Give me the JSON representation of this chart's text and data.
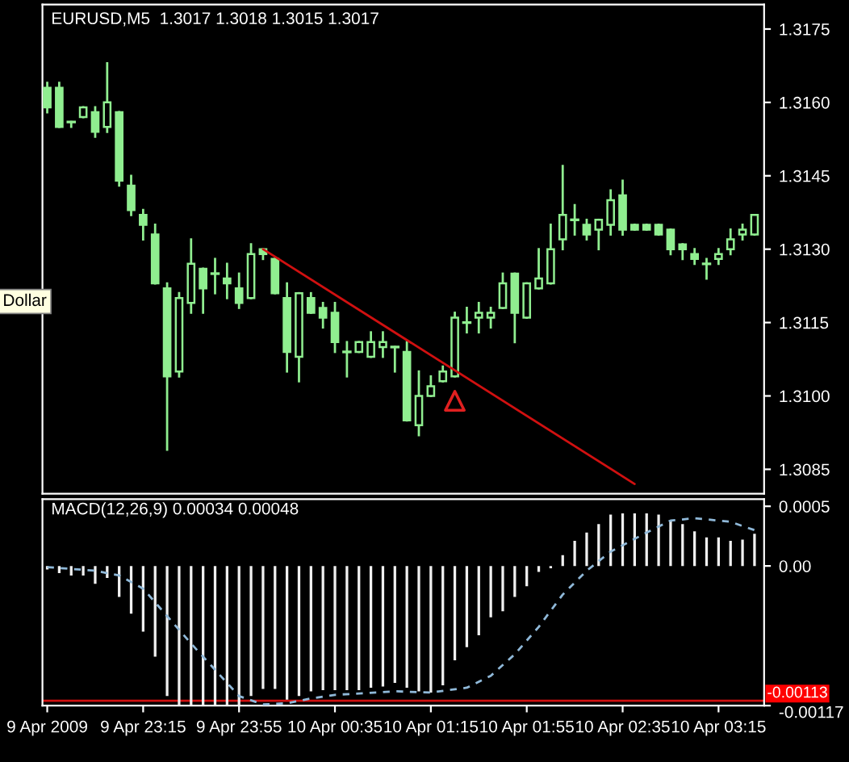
{
  "chart_data": [
    {
      "type": "candlestick",
      "title": "EURUSD,M5  1.3017 1.3018 1.3015 1.3017",
      "annotations": [
        "Dollar"
      ],
      "x": [
        "2009-04-09T22:35",
        "2009-04-09T22:40",
        "2009-04-09T22:45",
        "2009-04-09T22:50",
        "2009-04-09T22:55",
        "2009-04-09T23:00",
        "2009-04-09T23:05",
        "2009-04-09T23:10",
        "2009-04-09T23:15",
        "2009-04-09T23:20",
        "2009-04-09T23:25",
        "2009-04-09T23:30",
        "2009-04-09T23:35",
        "2009-04-09T23:40",
        "2009-04-09T23:45",
        "2009-04-09T23:50",
        "2009-04-09T23:55",
        "2009-04-10T00:00",
        "2009-04-10T00:05",
        "2009-04-10T00:10",
        "2009-04-10T00:15",
        "2009-04-10T00:20",
        "2009-04-10T00:25",
        "2009-04-10T00:30",
        "2009-04-10T00:35",
        "2009-04-10T00:40",
        "2009-04-10T00:45",
        "2009-04-10T00:50",
        "2009-04-10T00:55",
        "2009-04-10T01:00",
        "2009-04-10T01:05",
        "2009-04-10T01:10",
        "2009-04-10T01:15",
        "2009-04-10T01:20",
        "2009-04-10T01:25",
        "2009-04-10T01:30",
        "2009-04-10T01:35",
        "2009-04-10T01:40",
        "2009-04-10T01:45",
        "2009-04-10T01:50",
        "2009-04-10T01:55",
        "2009-04-10T02:00",
        "2009-04-10T02:05",
        "2009-04-10T02:10",
        "2009-04-10T02:15",
        "2009-04-10T02:20",
        "2009-04-10T02:25",
        "2009-04-10T02:30",
        "2009-04-10T02:35",
        "2009-04-10T02:40",
        "2009-04-10T02:45",
        "2009-04-10T02:50",
        "2009-04-10T02:55",
        "2009-04-10T03:00",
        "2009-04-10T03:05",
        "2009-04-10T03:10",
        "2009-04-10T03:15",
        "2009-04-10T03:20",
        "2009-04-10T03:25",
        "2009-04-10T03:30"
      ],
      "series": [
        {
          "color": "#90ee90",
          "ohlc": [
            [
              1.3163,
              1.3164,
              1.3158,
              1.3159
            ],
            [
              1.3163,
              1.3164,
              1.3155,
              1.3155
            ],
            [
              1.3156,
              1.3156,
              1.3155,
              1.3156
            ],
            [
              1.3157,
              1.3159,
              1.3157,
              1.3159
            ],
            [
              1.3158,
              1.3159,
              1.3153,
              1.3154
            ],
            [
              1.3155,
              1.3168,
              1.3154,
              1.316
            ],
            [
              1.3158,
              1.3158,
              1.3143,
              1.3144
            ],
            [
              1.3143,
              1.3145,
              1.3137,
              1.3138
            ],
            [
              1.3137,
              1.3138,
              1.3132,
              1.3135
            ],
            [
              1.3133,
              1.3135,
              1.3123,
              1.3123
            ],
            [
              1.3122,
              1.3123,
              1.3089,
              1.3104
            ],
            [
              1.3105,
              1.3121,
              1.3104,
              1.312
            ],
            [
              1.3119,
              1.3132,
              1.3117,
              1.3127
            ],
            [
              1.3126,
              1.3126,
              1.3117,
              1.3122
            ],
            [
              1.3125,
              1.3128,
              1.3121,
              1.3125
            ],
            [
              1.3124,
              1.3127,
              1.312,
              1.3123
            ],
            [
              1.3122,
              1.3125,
              1.3118,
              1.3119
            ],
            [
              1.312,
              1.3131,
              1.312,
              1.3129
            ],
            [
              1.313,
              1.313,
              1.3128,
              1.3129
            ],
            [
              1.3128,
              1.3128,
              1.3121,
              1.3121
            ],
            [
              1.312,
              1.3123,
              1.3105,
              1.3109
            ],
            [
              1.3108,
              1.3121,
              1.3103,
              1.3121
            ],
            [
              1.312,
              1.3121,
              1.3117,
              1.3117
            ],
            [
              1.3118,
              1.3119,
              1.3114,
              1.3116
            ],
            [
              1.3117,
              1.3119,
              1.3109,
              1.3111
            ],
            [
              1.3109,
              1.3111,
              1.3104,
              1.3109
            ],
            [
              1.3109,
              1.3111,
              1.3109,
              1.3111
            ],
            [
              1.3108,
              1.3113,
              1.3108,
              1.3111
            ],
            [
              1.311,
              1.3113,
              1.3108,
              1.3111
            ],
            [
              1.311,
              1.311,
              1.3105,
              1.311
            ],
            [
              1.3109,
              1.3111,
              1.3095,
              1.3095
            ],
            [
              1.3094,
              1.3105,
              1.3092,
              1.31
            ],
            [
              1.31,
              1.3104,
              1.31,
              1.3102
            ],
            [
              1.3103,
              1.3106,
              1.3103,
              1.3105
            ],
            [
              1.3104,
              1.3117,
              1.3104,
              1.3116
            ],
            [
              1.3115,
              1.3118,
              1.3113,
              1.3115
            ],
            [
              1.3116,
              1.3119,
              1.3113,
              1.3117
            ],
            [
              1.3116,
              1.3118,
              1.3114,
              1.3117
            ],
            [
              1.3118,
              1.3125,
              1.3118,
              1.3123
            ],
            [
              1.3125,
              1.3125,
              1.3111,
              1.3117
            ],
            [
              1.3116,
              1.3123,
              1.3116,
              1.3123
            ],
            [
              1.3122,
              1.313,
              1.3122,
              1.3124
            ],
            [
              1.3123,
              1.3135,
              1.3123,
              1.313
            ],
            [
              1.3132,
              1.3147,
              1.313,
              1.3137
            ],
            [
              1.3136,
              1.3139,
              1.3133,
              1.3136
            ],
            [
              1.3135,
              1.3136,
              1.3132,
              1.3133
            ],
            [
              1.3134,
              1.3136,
              1.313,
              1.3136
            ],
            [
              1.3135,
              1.3142,
              1.3133,
              1.314
            ],
            [
              1.3141,
              1.3144,
              1.3133,
              1.3134
            ],
            [
              1.3135,
              1.3135,
              1.3134,
              1.3134
            ],
            [
              1.3135,
              1.3135,
              1.3134,
              1.3134
            ],
            [
              1.3135,
              1.3135,
              1.3133,
              1.3133
            ],
            [
              1.3134,
              1.3134,
              1.3129,
              1.313
            ],
            [
              1.3131,
              1.3131,
              1.3128,
              1.313
            ],
            [
              1.3129,
              1.313,
              1.3127,
              1.3128
            ],
            [
              1.3127,
              1.3128,
              1.3124,
              1.3127
            ],
            [
              1.3128,
              1.313,
              1.3127,
              1.3129
            ],
            [
              1.313,
              1.3134,
              1.3129,
              1.3132
            ],
            [
              1.3133,
              1.3135,
              1.3132,
              1.3134
            ],
            [
              1.3133,
              1.3137,
              1.3133,
              1.3137
            ]
          ]
        },
        {
          "type": "line",
          "color": "#d01010",
          "x": [
            "2009-04-10T00:05",
            "2009-04-10T02:40"
          ],
          "values": [
            1.313,
            1.3082
          ]
        },
        {
          "type": "scatter",
          "color": "#e02020",
          "marker": "triangle",
          "x": [
            "2009-04-10T01:25"
          ],
          "values": [
            1.3099
          ]
        }
      ],
      "xlim": [
        "2009-04-09T22:33",
        "2009-04-10T03:34"
      ],
      "ylim": [
        1.308,
        1.318
      ],
      "yticks": [
        {
          "value": 1.3085,
          "label": "1.3085"
        },
        {
          "value": 1.31,
          "label": "1.3100"
        },
        {
          "value": 1.3115,
          "label": "1.3115"
        },
        {
          "value": 1.313,
          "label": "1.3130"
        },
        {
          "value": 1.3145,
          "label": "1.3145"
        },
        {
          "value": 1.316,
          "label": "1.3160"
        },
        {
          "value": 1.3175,
          "label": "1.3175"
        }
      ],
      "tick_labels": "y"
    },
    {
      "type": "bar",
      "title": "MACD(12,26,9) 0.00034 0.00048",
      "x": [
        "2009-04-09T22:35",
        "2009-04-09T22:40",
        "2009-04-09T22:45",
        "2009-04-09T22:50",
        "2009-04-09T22:55",
        "2009-04-09T23:00",
        "2009-04-09T23:05",
        "2009-04-09T23:10",
        "2009-04-09T23:15",
        "2009-04-09T23:20",
        "2009-04-09T23:25",
        "2009-04-09T23:30",
        "2009-04-09T23:35",
        "2009-04-09T23:40",
        "2009-04-09T23:45",
        "2009-04-09T23:50",
        "2009-04-09T23:55",
        "2009-04-10T00:00",
        "2009-04-10T00:05",
        "2009-04-10T00:10",
        "2009-04-10T00:15",
        "2009-04-10T00:20",
        "2009-04-10T00:25",
        "2009-04-10T00:30",
        "2009-04-10T00:35",
        "2009-04-10T00:40",
        "2009-04-10T00:45",
        "2009-04-10T00:50",
        "2009-04-10T00:55",
        "2009-04-10T01:00",
        "2009-04-10T01:05",
        "2009-04-10T01:10",
        "2009-04-10T01:15",
        "2009-04-10T01:20",
        "2009-04-10T01:25",
        "2009-04-10T01:30",
        "2009-04-10T01:35",
        "2009-04-10T01:40",
        "2009-04-10T01:45",
        "2009-04-10T01:50",
        "2009-04-10T01:55",
        "2009-04-10T02:00",
        "2009-04-10T02:05",
        "2009-04-10T02:10",
        "2009-04-10T02:15",
        "2009-04-10T02:20",
        "2009-04-10T02:25",
        "2009-04-10T02:30",
        "2009-04-10T02:35",
        "2009-04-10T02:40",
        "2009-04-10T02:45",
        "2009-04-10T02:50",
        "2009-04-10T02:55",
        "2009-04-10T03:00",
        "2009-04-10T03:05",
        "2009-04-10T03:10",
        "2009-04-10T03:15",
        "2009-04-10T03:20",
        "2009-04-10T03:25",
        "2009-04-10T03:30"
      ],
      "series": [
        {
          "color": "#f0f0f0",
          "values": [
            -3e-05,
            -6e-05,
            -8e-05,
            -8e-05,
            -0.00015,
            -0.0001,
            -0.00026,
            -0.0004,
            -0.00055,
            -0.00076,
            -0.00109,
            -0.00117,
            -0.00117,
            -0.00117,
            -0.00117,
            -0.00117,
            -0.00117,
            -0.00109,
            -0.00103,
            -0.00103,
            -0.00112,
            -0.00109,
            -0.00105,
            -0.00104,
            -0.00104,
            -0.00104,
            -0.00104,
            -0.00102,
            -0.00101,
            -0.00098,
            -0.00102,
            -0.00105,
            -0.00106,
            -0.001,
            -0.00079,
            -0.00068,
            -0.00058,
            -0.00043,
            -0.00038,
            -0.00026,
            -0.00017,
            -5e-05,
            -2e-05,
            9e-05,
            0.00021,
            0.00028,
            0.00035,
            0.00043,
            0.00044,
            0.00044,
            0.00044,
            0.00043,
            0.00038,
            0.00035,
            0.00029,
            0.00024,
            0.00024,
            0.00021,
            0.00022,
            0.00027
          ]
        },
        {
          "type": "line",
          "color": "#8fb8d8",
          "line_style": "dashed",
          "x": [
            "2009-04-09T22:35",
            "2009-04-09T22:55",
            "2009-04-09T23:05",
            "2009-04-09T23:15",
            "2009-04-09T23:25",
            "2009-04-09T23:35",
            "2009-04-09T23:45",
            "2009-04-09T23:55",
            "2009-04-10T00:05",
            "2009-04-10T00:15",
            "2009-04-10T00:25",
            "2009-04-10T00:35",
            "2009-04-10T01:00",
            "2009-04-10T01:15",
            "2009-04-10T01:30",
            "2009-04-10T01:40",
            "2009-04-10T01:50",
            "2009-04-10T02:00",
            "2009-04-10T02:10",
            "2009-04-10T02:20",
            "2009-04-10T02:30",
            "2009-04-10T02:45",
            "2009-04-10T02:55",
            "2009-04-10T03:05",
            "2009-04-10T03:20",
            "2009-04-10T03:30"
          ],
          "values": [
            -1e-05,
            -4e-05,
            -8e-05,
            -0.00019,
            -0.00042,
            -0.00065,
            -0.00087,
            -0.00109,
            -0.00116,
            -0.00115,
            -0.00111,
            -0.00108,
            -0.00105,
            -0.00106,
            -0.00102,
            -0.00092,
            -0.00074,
            -0.00051,
            -0.00024,
            -4e-05,
            0.00012,
            0.00028,
            0.00038,
            0.0004,
            0.00037,
            0.0003
          ]
        }
      ],
      "xlim": [
        "2009-04-09T22:33",
        "2009-04-10T03:34"
      ],
      "ylim": [
        -0.00117,
        0.00056
      ],
      "yticks": [
        {
          "value": -0.00117,
          "label": "-0.00117"
        },
        {
          "value": 0,
          "label": "0.00"
        },
        {
          "value": 0.0005,
          "label": "0.0005"
        }
      ],
      "xticks": [
        {
          "value": "2009-04-09T22:35",
          "label": "9 Apr 2009"
        },
        {
          "value": "2009-04-09T23:15",
          "label": "9 Apr 23:15"
        },
        {
          "value": "2009-04-09T23:55",
          "label": "9 Apr 23:55"
        },
        {
          "value": "2009-04-10T00:35",
          "label": "10 Apr 00:35"
        },
        {
          "value": "2009-04-10T01:15",
          "label": "10 Apr 01:15"
        },
        {
          "value": "2009-04-10T01:55",
          "label": "10 Apr 01:55"
        },
        {
          "value": "2009-04-10T02:35",
          "label": "10 Apr 02:35"
        },
        {
          "value": "2009-04-10T03:15",
          "label": "10 Apr 03:15"
        }
      ],
      "ref_lines": [
        {
          "axis": "y",
          "value": -0.00113,
          "label": "-0.00113",
          "color": "#d01010"
        }
      ]
    }
  ]
}
